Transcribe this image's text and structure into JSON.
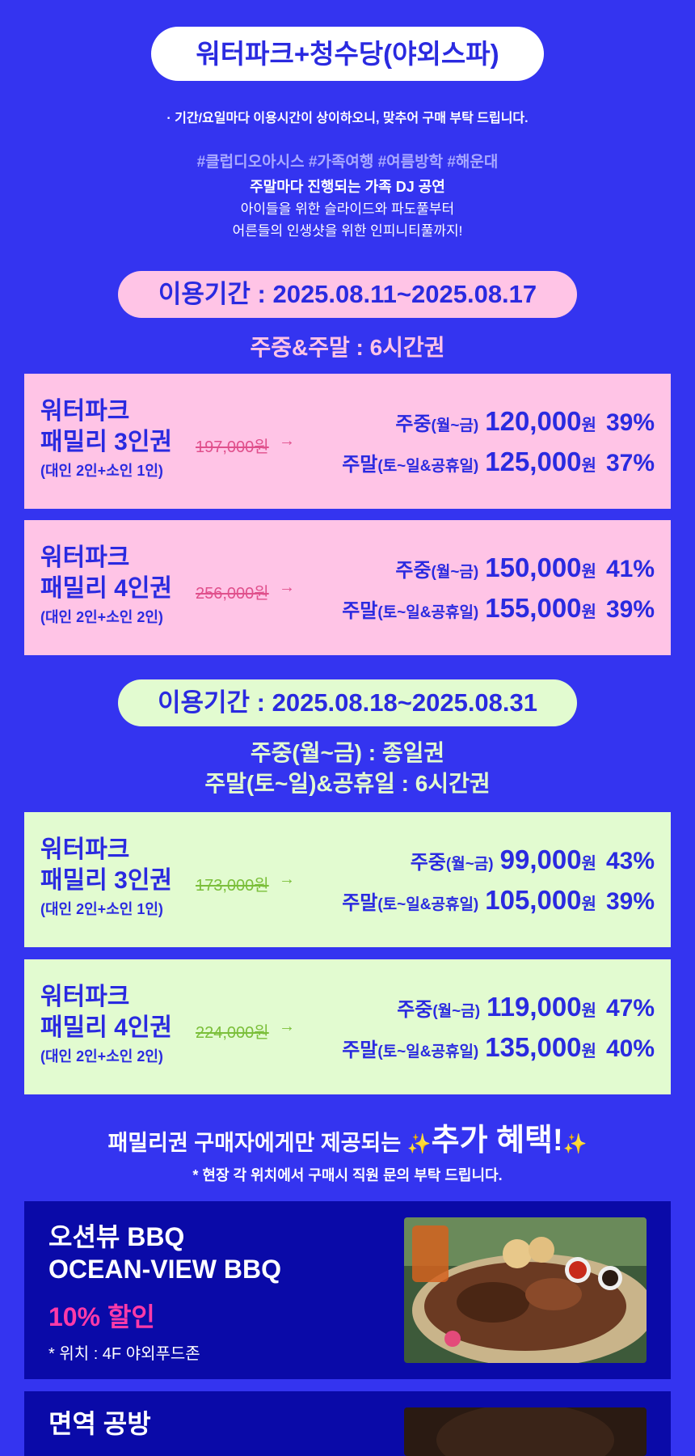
{
  "header": {
    "title": "워터파크+청수당(야외스파)",
    "notice": "· 기간/요일마다 이용시간이 상이하오니, 맞추어 구매 부탁 드립니다.",
    "tags": "#클럽디오아시스 #가족여행 #여름방학 #해운대",
    "intro_bold": "주말마다 진행되는 가족 DJ 공연",
    "intro_line2": "아이들을 위한 슬라이드와 파도풀부터",
    "intro_line3": "어른들의 인생샷을 위한 인피니티풀까지!"
  },
  "period1": {
    "label": "이용기간 : 2025.08.11~2025.08.17",
    "subtitle": "주중&주말 : 6시간권",
    "cards": [
      {
        "name1": "워터파크",
        "name2": "패밀리 3인권",
        "sub": "(대인 2인+소인 1인)",
        "original": "197,000원",
        "weekday_label": "주중",
        "weekday_days": "(월~금)",
        "weekday_price": "120,000",
        "weekday_pct": "39%",
        "weekend_label": "주말",
        "weekend_days": "(토~일&공휴일)",
        "weekend_price": "125,000",
        "weekend_pct": "37%"
      },
      {
        "name1": "워터파크",
        "name2": "패밀리 4인권",
        "sub": "(대인 2인+소인 2인)",
        "original": "256,000원",
        "weekday_label": "주중",
        "weekday_days": "(월~금)",
        "weekday_price": "150,000",
        "weekday_pct": "41%",
        "weekend_label": "주말",
        "weekend_days": "(토~일&공휴일)",
        "weekend_price": "155,000",
        "weekend_pct": "39%"
      }
    ]
  },
  "period2": {
    "label": "이용기간 : 2025.08.18~2025.08.31",
    "subtitle1": "주중(월~금) : 종일권",
    "subtitle2": "주말(토~일)&공휴일 : 6시간권",
    "cards": [
      {
        "name1": "워터파크",
        "name2": "패밀리 3인권",
        "sub": "(대인 2인+소인 1인)",
        "original": "173,000원",
        "weekday_label": "주중",
        "weekday_days": "(월~금)",
        "weekday_price": "99,000",
        "weekday_pct": "43%",
        "weekend_label": "주말",
        "weekend_days": "(토~일&공휴일)",
        "weekend_price": "105,000",
        "weekend_pct": "39%"
      },
      {
        "name1": "워터파크",
        "name2": "패밀리 4인권",
        "sub": "(대인 2인+소인 2인)",
        "original": "224,000원",
        "weekday_label": "주중",
        "weekday_days": "(월~금)",
        "weekday_price": "119,000",
        "weekday_pct": "47%",
        "weekend_label": "주말",
        "weekend_days": "(토~일&공휴일)",
        "weekend_price": "135,000",
        "weekend_pct": "40%"
      }
    ]
  },
  "currency": "원",
  "benefits": {
    "title_prefix": "패밀리권 구매자에게만 제공되는",
    "title_big": "추가 혜택!",
    "sparkle": "✨",
    "note": "* 현장 각 위치에서 구매시 직원 문의 부탁 드립니다.",
    "bbq": {
      "title1": "오션뷰 BBQ",
      "title2": "OCEAN-VIEW BBQ",
      "discount": "10% 할인",
      "location": "* 위치 : 4F 야외푸드존"
    },
    "workshop": {
      "title1": "면역 공방"
    }
  },
  "colors": {
    "background": "#3434f0",
    "pink": "#ffc4e6",
    "green": "#e2fbd0",
    "accent_text": "#2a2ae0",
    "discount": "#ff3aa8"
  }
}
